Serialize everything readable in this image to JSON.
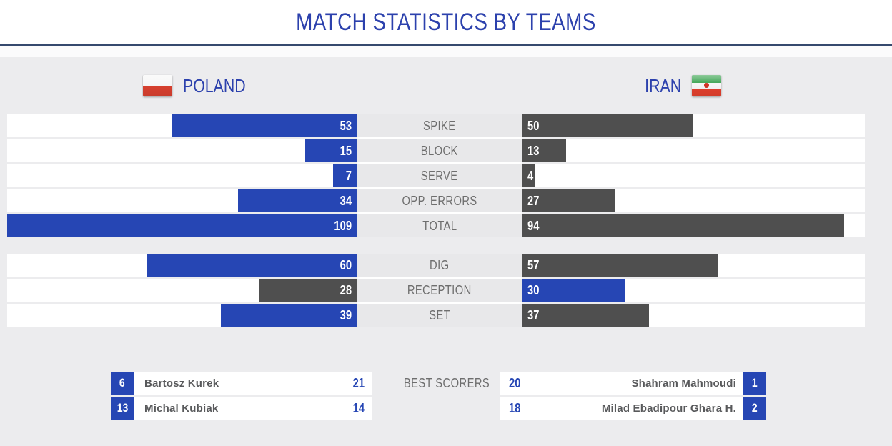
{
  "title": "MATCH STATISTICS BY TEAMS",
  "teams": {
    "home": {
      "name": "POLAND",
      "flag": "poland-flag"
    },
    "away": {
      "name": "IRAN",
      "flag": "iran-flag"
    }
  },
  "chart_data": {
    "type": "bar",
    "orientation": "horizontal-paired",
    "title": "MATCH STATISTICS BY TEAMS",
    "categories": [
      "SPIKE",
      "BLOCK",
      "SERVE",
      "OPP. ERRORS",
      "TOTAL",
      "DIG",
      "RECEPTION",
      "SET"
    ],
    "series": [
      {
        "name": "POLAND",
        "values": [
          53,
          15,
          7,
          34,
          109,
          60,
          28,
          39
        ]
      },
      {
        "name": "IRAN",
        "values": [
          50,
          13,
          4,
          27,
          94,
          57,
          30,
          37
        ]
      }
    ],
    "groups": [
      {
        "rows": [
          "SPIKE",
          "BLOCK",
          "SERVE",
          "OPP. ERRORS",
          "TOTAL"
        ]
      },
      {
        "rows": [
          "DIG",
          "RECEPTION",
          "SET"
        ]
      }
    ],
    "scale_max": 100,
    "grid": false,
    "legend_position": "top (team headers with flags)",
    "highlight_rule": "higher value of each pair rendered blue, lower rendered dark gray; bars grow inward from page edges"
  },
  "best_scorers": {
    "label": "BEST SCORERS",
    "home": [
      {
        "jersey": "6",
        "name": "Bartosz Kurek",
        "points": "21"
      },
      {
        "jersey": "13",
        "name": "Michal Kubiak",
        "points": "14"
      }
    ],
    "away": [
      {
        "jersey": "1",
        "name": "Shahram Mahmoudi",
        "points": "20"
      },
      {
        "jersey": "2",
        "name": "Milad Ebadipour Ghara H.",
        "points": "18"
      }
    ]
  },
  "colors": {
    "accent_blue": "#2646b4",
    "bar_gray": "#4f4f4f",
    "title_blue": "#2c41ad",
    "header_rule": "#35496e",
    "label_gray": "#6e6e6e",
    "page_bg": "#ececee",
    "label_cell_bg": "#e8e8ea",
    "track_white": "#ffffff"
  }
}
